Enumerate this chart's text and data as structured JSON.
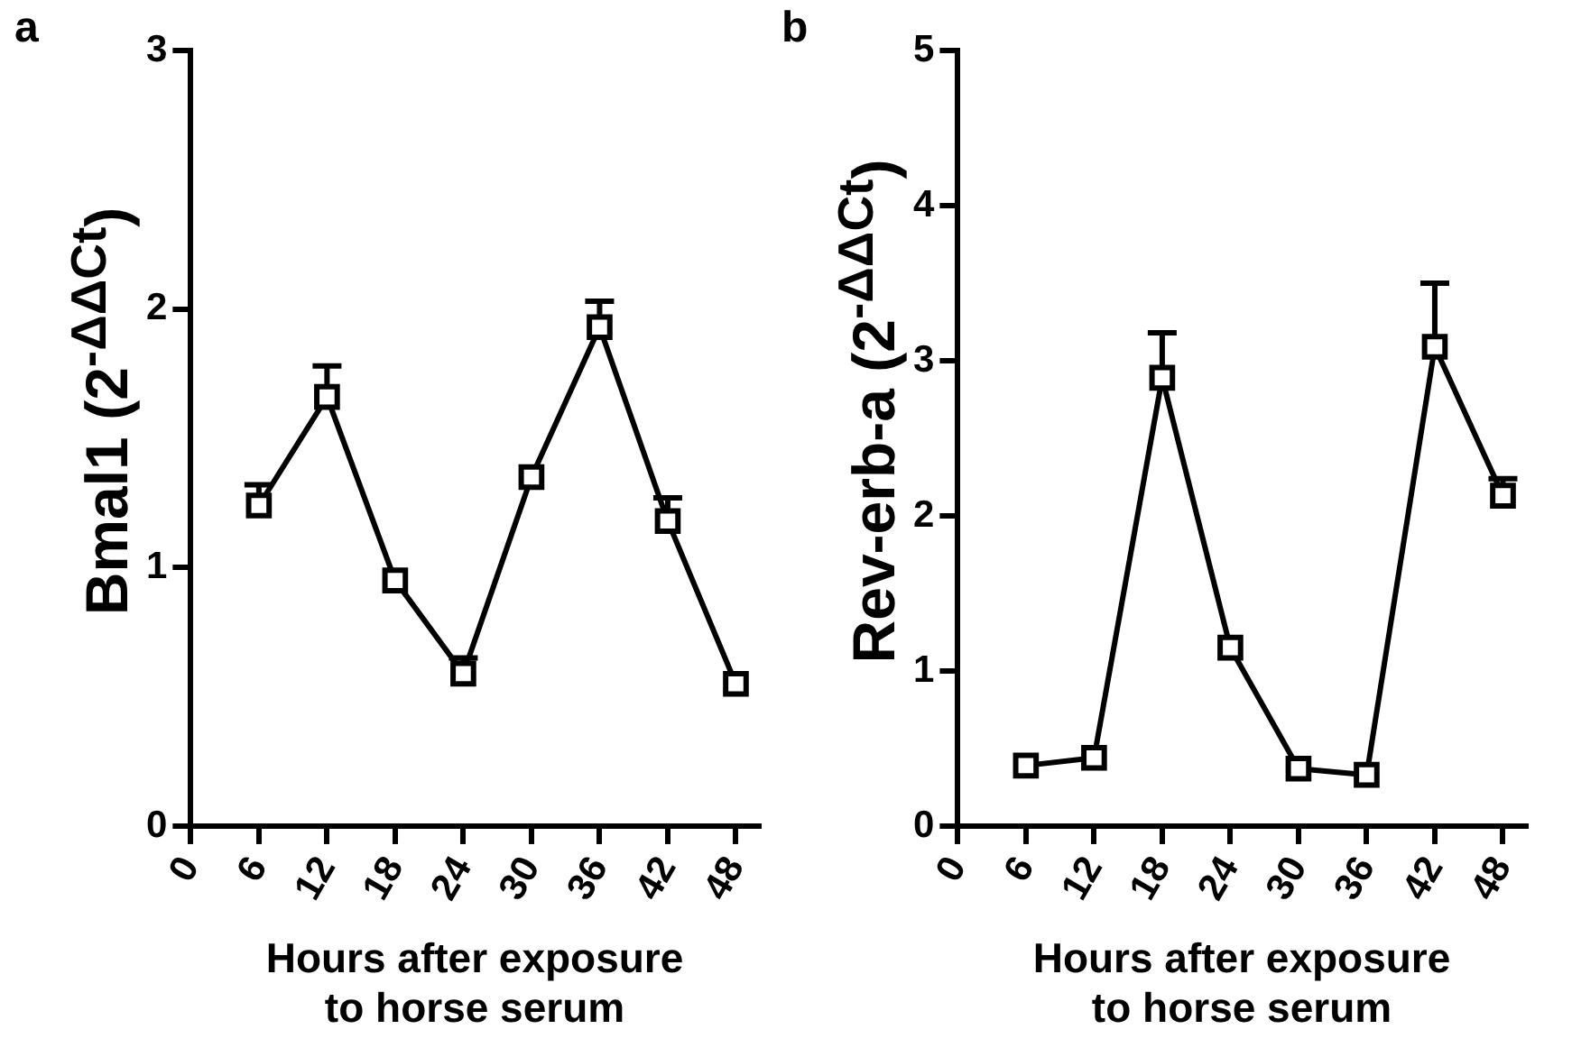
{
  "chart_data": [
    {
      "type": "line",
      "title": "a",
      "xlabel": "Hours after exposure\nto horse serum",
      "ylabel": "Bmal1 (2$^{-ΔΔCt}$)",
      "x": [
        6,
        12,
        18,
        24,
        30,
        36,
        42,
        48
      ],
      "marker": "square",
      "grid": false,
      "legend": false,
      "series": [
        {
          "color": "#000000",
          "values": [
            1.24,
            1.66,
            0.95,
            0.59,
            1.35,
            1.93,
            1.18,
            0.55
          ],
          "errors": [
            [
              1.24,
              1.32
            ],
            [
              1.66,
              1.78
            ],
            null,
            [
              0.59,
              0.65
            ],
            null,
            [
              1.93,
              2.03
            ],
            [
              1.18,
              1.27
            ],
            null
          ]
        }
      ],
      "xlim": [
        0,
        50
      ],
      "xticks": [
        0,
        6,
        12,
        18,
        24,
        30,
        36,
        42,
        48
      ],
      "ylim": [
        0,
        3
      ],
      "yticks": [
        0,
        1,
        2,
        3
      ]
    },
    {
      "type": "line",
      "title": "b",
      "xlabel": "Hours after exposure\nto horse serum",
      "ylabel": "Rev-erb-a (2$^{-ΔΔCt}$)",
      "x": [
        6,
        12,
        18,
        24,
        30,
        36,
        42,
        48
      ],
      "marker": "square",
      "grid": false,
      "legend": false,
      "series": [
        {
          "color": "#000000",
          "values": [
            0.39,
            0.44,
            2.89,
            1.15,
            0.37,
            0.33,
            3.09,
            2.13
          ],
          "errors": [
            null,
            null,
            [
              2.89,
              3.18
            ],
            null,
            null,
            null,
            [
              3.09,
              3.5
            ],
            [
              2.13,
              2.24
            ]
          ]
        }
      ],
      "xlim": [
        0,
        50
      ],
      "xticks": [
        0,
        6,
        12,
        18,
        24,
        30,
        36,
        42,
        48
      ],
      "ylim": [
        0,
        5
      ],
      "yticks": [
        0,
        1,
        2,
        3,
        4,
        5
      ]
    }
  ]
}
